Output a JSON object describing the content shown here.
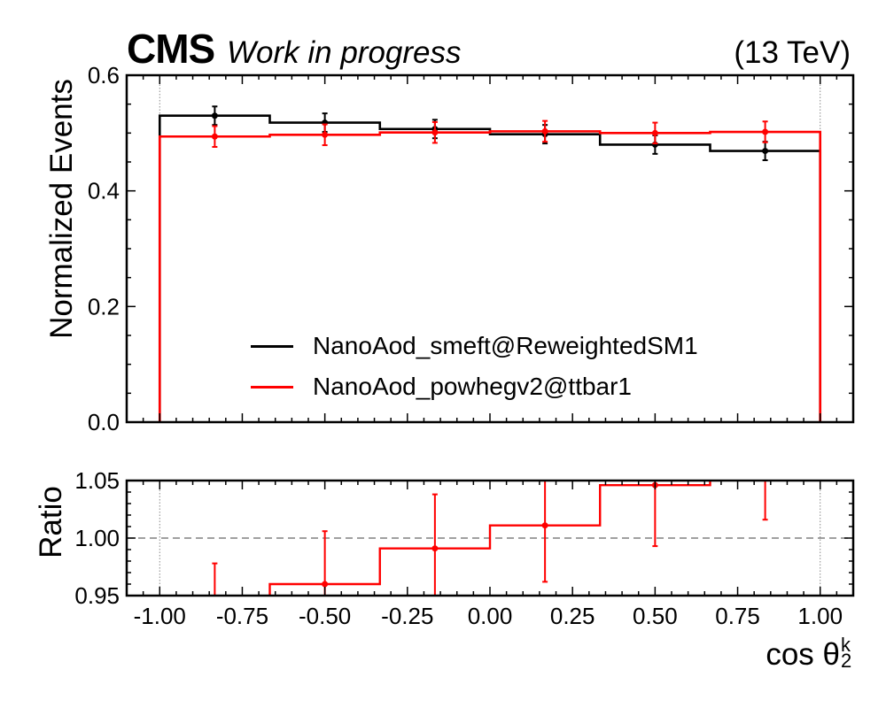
{
  "header": {
    "experiment": "CMS",
    "status": "Work in progress",
    "energy": "(13 TeV)"
  },
  "colors": {
    "series1": "#000000",
    "series2": "#ff0000",
    "reference_line": "#808080"
  },
  "chart_data": [
    {
      "type": "line",
      "subtype": "step-histogram",
      "ylabel": "Normalized Events",
      "ylim": [
        0,
        0.6
      ],
      "yticks": [
        "0.0",
        "0.2",
        "0.4",
        "0.6"
      ],
      "xlim": [
        -1.1,
        1.1
      ],
      "bin_edges": [
        -1.0,
        -0.6667,
        -0.3333,
        0.0,
        0.3333,
        0.6667,
        1.0
      ],
      "legend_position": "lower-center",
      "series": [
        {
          "name": "NanoAod_smeft@ReweightedSM1",
          "values": [
            0.53,
            0.518,
            0.507,
            0.498,
            0.48,
            0.469
          ],
          "errors": [
            0.016,
            0.016,
            0.016,
            0.016,
            0.016,
            0.016
          ]
        },
        {
          "name": "NanoAod_powhegv2@ttbar1",
          "values": [
            0.494,
            0.497,
            0.501,
            0.503,
            0.5,
            0.502
          ],
          "errors": [
            0.018,
            0.018,
            0.018,
            0.018,
            0.018,
            0.018
          ]
        }
      ]
    },
    {
      "type": "line",
      "subtype": "step-histogram",
      "ylabel": "Ratio",
      "ylim": [
        0.95,
        1.05
      ],
      "yticks": [
        "0.95",
        "1.00",
        "1.05"
      ],
      "xlabel": "cos θ",
      "xlabel_sup": "k",
      "xlabel_sub": "2",
      "xticks": [
        "-1.00",
        "-0.75",
        "-0.50",
        "-0.25",
        "0.00",
        "0.25",
        "0.50",
        "0.75",
        "1.00"
      ],
      "xlim": [
        -1.1,
        1.1
      ],
      "bin_edges": [
        -1.0,
        -0.6667,
        -0.3333,
        0.0,
        0.3333,
        0.6667,
        1.0
      ],
      "reference_line": 1.0,
      "series": [
        {
          "name": "ratio",
          "values": [
            0.932,
            0.96,
            0.991,
            1.011,
            1.046,
            1.071
          ],
          "errors": [
            0.046,
            0.046,
            0.047,
            0.049,
            0.053,
            0.055
          ]
        }
      ]
    }
  ]
}
